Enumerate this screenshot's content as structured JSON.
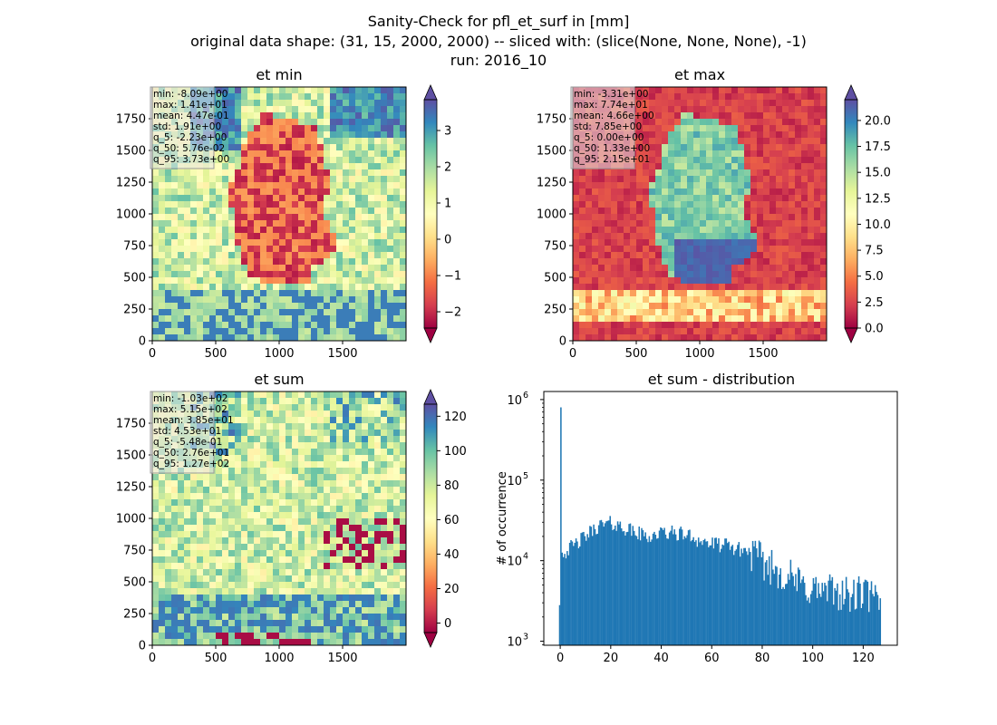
{
  "figure": {
    "suptitle": [
      "Sanity-Check for pfl_et_surf in [mm]",
      "original data shape: (31, 15, 2000, 2000) -- sliced with: (slice(None, None, None), -1)",
      "run: 2016_10"
    ]
  },
  "colors": {
    "colormap": "Spectral",
    "histogram_bar": "#1f77b4",
    "stats_box_fill": "#e6e6e6",
    "stats_box_edge": "#999999"
  },
  "chart_data": [
    {
      "type": "heatmap",
      "name": "et-min",
      "title": "et min",
      "xlim": [
        0,
        2000
      ],
      "ylim": [
        0,
        2000
      ],
      "xticks": [
        0,
        500,
        1000,
        1500
      ],
      "yticks": [
        0,
        250,
        500,
        750,
        1000,
        1250,
        1500,
        1750
      ],
      "colorbar": {
        "vmin": -2.45,
        "vmax": 3.85,
        "ticks": [
          -2,
          -1,
          0,
          1,
          2,
          3
        ],
        "extend": "both",
        "colormap": "Spectral"
      },
      "stats": [
        "min: -8.09e+00",
        "max: 1.41e+01",
        "mean: 4.47e-01",
        "std: 1.91e+00",
        "q_5: -2.23e+00",
        "q_50: 5.76e-02",
        "q_95: 3.73e+00"
      ]
    },
    {
      "type": "heatmap",
      "name": "et-max",
      "title": "et max",
      "xlim": [
        0,
        2000
      ],
      "ylim": [
        0,
        2000
      ],
      "xticks": [
        0,
        500,
        1000,
        1500
      ],
      "yticks": [
        0,
        250,
        500,
        750,
        1000,
        1250,
        1500,
        1750
      ],
      "colorbar": {
        "vmin": 0,
        "vmax": 22,
        "ticks": [
          0.0,
          2.5,
          5.0,
          7.5,
          10.0,
          12.5,
          15.0,
          17.5,
          20.0
        ],
        "extend": "both",
        "colormap": "Spectral"
      },
      "stats": [
        "min: -3.31e+00",
        "max: 7.74e+01",
        "mean: 4.66e+00",
        "std: 7.85e+00",
        "q_5: 0.00e+00",
        "q_50: 1.33e+00",
        "q_95: 2.15e+01"
      ]
    },
    {
      "type": "heatmap",
      "name": "et-sum",
      "title": "et sum",
      "xlim": [
        0,
        2000
      ],
      "ylim": [
        0,
        2000
      ],
      "xticks": [
        0,
        500,
        1000,
        1500
      ],
      "yticks": [
        0,
        250,
        500,
        750,
        1000,
        1250,
        1500,
        1750
      ],
      "colorbar": {
        "vmin": -5.5,
        "vmax": 127,
        "ticks": [
          0,
          20,
          40,
          60,
          80,
          100,
          120
        ],
        "extend": "both",
        "colormap": "Spectral"
      },
      "stats": [
        "min: -1.03e+02",
        "max: 5.15e+02",
        "mean: 3.85e+01",
        "std: 4.53e+01",
        "q_5: -5.48e-01",
        "q_50: 2.76e+01",
        "q_95: 1.27e+02"
      ]
    },
    {
      "type": "bar",
      "name": "et-sum-distribution",
      "title": "et sum - distribution",
      "ylabel": "# of occurrence",
      "xlabel": "",
      "yscale": "log",
      "xlim": [
        -6.5,
        133.5
      ],
      "ylim_exp": [
        2.95,
        6.1
      ],
      "xticks": [
        0,
        20,
        40,
        60,
        80,
        100,
        120
      ],
      "yticks": [
        {
          "base": "10",
          "exp": "3",
          "value": 1000
        },
        {
          "base": "10",
          "exp": "4",
          "value": 10000
        },
        {
          "base": "10",
          "exp": "5",
          "value": 100000
        },
        {
          "base": "10",
          "exp": "6",
          "value": 1000000
        }
      ],
      "bin_width": 0.5,
      "spike": {
        "x": 0,
        "count": 800000
      },
      "envelope": [
        [
          -0.5,
          2000
        ],
        [
          0.5,
          12000
        ],
        [
          2,
          13000
        ],
        [
          5,
          15000
        ],
        [
          10,
          20000
        ],
        [
          15,
          27000
        ],
        [
          20,
          29000
        ],
        [
          25,
          26000
        ],
        [
          30,
          22000
        ],
        [
          35,
          20000
        ],
        [
          40,
          22000
        ],
        [
          45,
          22000
        ],
        [
          50,
          21000
        ],
        [
          55,
          18000
        ],
        [
          60,
          16000
        ],
        [
          65,
          15500
        ],
        [
          70,
          14000
        ],
        [
          75,
          13000
        ],
        [
          80,
          9500
        ],
        [
          85,
          8000
        ],
        [
          90,
          6500
        ],
        [
          95,
          5000
        ],
        [
          100,
          4500
        ],
        [
          105,
          4000
        ],
        [
          110,
          4200
        ],
        [
          115,
          3500
        ],
        [
          120,
          4000
        ],
        [
          125,
          3200
        ],
        [
          126.5,
          2500
        ]
      ]
    }
  ]
}
